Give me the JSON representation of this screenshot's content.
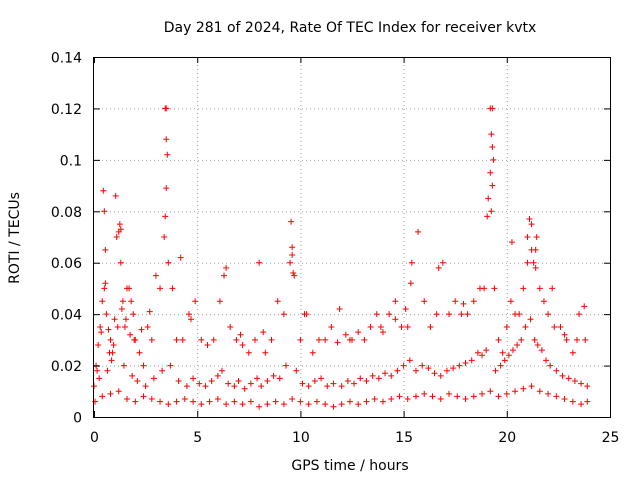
{
  "chart_data": {
    "type": "scatter",
    "title": "Day 281 of 2024, Rate Of TEC Index for receiver kvtx",
    "xlabel": "GPS time / hours",
    "ylabel": "ROTI / TECUs",
    "xlim": [
      0,
      25
    ],
    "ylim": [
      0,
      0.14
    ],
    "x_ticks": [
      0,
      5,
      10,
      15,
      20,
      25
    ],
    "y_ticks": [
      0,
      0.02,
      0.04,
      0.06,
      0.08,
      0.1,
      0.12,
      0.14
    ],
    "x_tick_labels": [
      "0",
      "5",
      "10",
      "15",
      "20",
      "25"
    ],
    "y_tick_labels": [
      "0",
      "0.02",
      "0.04",
      "0.06",
      "0.08",
      "0.1",
      "0.12",
      "0.14"
    ],
    "grid": true,
    "marker": "+",
    "marker_color": "#ff0000",
    "series": [
      {
        "x": [
          0.0,
          0.1,
          0.2,
          0.3,
          0.4,
          0.5,
          0.6,
          0.7,
          0.8,
          0.9,
          1.0,
          1.1,
          1.2,
          1.3,
          1.4,
          1.5,
          1.6,
          1.7,
          1.8,
          1.9,
          2.0,
          2.2,
          2.4,
          2.6,
          2.8,
          3.0,
          3.2,
          3.4,
          3.5,
          3.6,
          3.8,
          4.0,
          4.3,
          4.6,
          4.9,
          5.2,
          5.5,
          5.8,
          6.1,
          6.3,
          6.6,
          6.9,
          7.2,
          7.5,
          7.8,
          8.0,
          8.3,
          8.6,
          8.9,
          9.2,
          9.5,
          9.6,
          9.7,
          10.0,
          10.3,
          10.6,
          10.9,
          11.2,
          11.5,
          11.9,
          12.2,
          12.5,
          12.8,
          13.1,
          13.4,
          13.7,
          14.0,
          14.3,
          14.6,
          14.9,
          15.2,
          15.4,
          15.7,
          16.0,
          16.3,
          16.6,
          16.9,
          17.2,
          17.5,
          17.8,
          18.1,
          18.4,
          18.7,
          18.9,
          19.1,
          19.2,
          19.3,
          19.4,
          19.6,
          19.8,
          20.0,
          20.2,
          20.4,
          20.6,
          20.8,
          21.0,
          21.2,
          21.4,
          21.6,
          21.8,
          22.0,
          22.3,
          22.6,
          22.9,
          23.2,
          23.5,
          23.8,
          0.15,
          0.35,
          0.55,
          0.75,
          0.95,
          1.15,
          1.35,
          1.55,
          1.75,
          1.95,
          0.45,
          0.5,
          0.55,
          1.05,
          1.25,
          1.3,
          3.45,
          3.5,
          3.55,
          3.5,
          3.45,
          9.55,
          9.6,
          9.65,
          19.2,
          19.25,
          19.3,
          19.35,
          19.3,
          19.25,
          21.0,
          21.1,
          21.2,
          21.3,
          21.4,
          0.25,
          0.65,
          0.85,
          1.45,
          1.85,
          2.1,
          2.5,
          2.9,
          3.3,
          3.7,
          4.1,
          4.5,
          4.8,
          5.1,
          5.4,
          5.7,
          6.0,
          6.2,
          6.5,
          6.8,
          7.0,
          7.3,
          7.6,
          7.9,
          8.1,
          8.4,
          8.7,
          9.0,
          9.3,
          9.8,
          10.1,
          10.4,
          10.7,
          11.0,
          11.3,
          11.6,
          12.0,
          12.3,
          12.6,
          12.9,
          13.2,
          13.5,
          13.8,
          14.1,
          14.4,
          14.7,
          15.0,
          15.3,
          15.6,
          15.9,
          16.2,
          16.5,
          16.8,
          17.1,
          17.4,
          17.7,
          18.0,
          18.3,
          18.6,
          18.8,
          19.0,
          19.45,
          19.7,
          19.9,
          20.1,
          20.3,
          20.5,
          20.7,
          20.9,
          21.15,
          21.35,
          21.5,
          21.7,
          21.9,
          22.1,
          22.4,
          22.7,
          23.0,
          23.3,
          23.6,
          23.9,
          0.05,
          0.4,
          0.8,
          1.2,
          1.6,
          2.0,
          2.4,
          2.8,
          3.2,
          3.6,
          4.0,
          4.4,
          4.8,
          5.2,
          5.6,
          6.0,
          6.4,
          6.8,
          7.2,
          7.6,
          8.0,
          8.4,
          8.8,
          9.2,
          9.6,
          10.0,
          10.4,
          10.8,
          11.2,
          11.6,
          12.0,
          12.4,
          12.8,
          13.2,
          13.6,
          14.0,
          14.4,
          14.8,
          15.2,
          15.6,
          16.0,
          16.4,
          16.8,
          17.2,
          17.6,
          18.0,
          18.4,
          18.8,
          19.2,
          19.6,
          20.0,
          20.4,
          20.8,
          21.2,
          21.6,
          22.0,
          22.4,
          22.8,
          23.2,
          23.6,
          23.9,
          2.3,
          2.7,
          4.2,
          4.7,
          6.4,
          7.1,
          8.2,
          10.2,
          11.8,
          12.4,
          13.9,
          14.6,
          15.1,
          15.35,
          16.7,
          17.9,
          19.05,
          20.25,
          21.45,
          22.2,
          22.8,
          23.4,
          23.75
        ],
        "y": [
          0.012,
          0.02,
          0.028,
          0.035,
          0.045,
          0.05,
          0.04,
          0.034,
          0.03,
          0.025,
          0.038,
          0.07,
          0.072,
          0.06,
          0.045,
          0.035,
          0.05,
          0.05,
          0.045,
          0.04,
          0.03,
          0.025,
          0.02,
          0.035,
          0.03,
          0.055,
          0.05,
          0.07,
          0.12,
          0.06,
          0.05,
          0.03,
          0.03,
          0.04,
          0.045,
          0.03,
          0.028,
          0.03,
          0.045,
          0.055,
          0.035,
          0.03,
          0.028,
          0.025,
          0.03,
          0.06,
          0.025,
          0.03,
          0.045,
          0.04,
          0.06,
          0.066,
          0.055,
          0.03,
          0.04,
          0.025,
          0.03,
          0.03,
          0.035,
          0.042,
          0.032,
          0.03,
          0.033,
          0.03,
          0.035,
          0.04,
          0.033,
          0.04,
          0.045,
          0.035,
          0.035,
          0.06,
          0.072,
          0.045,
          0.035,
          0.04,
          0.06,
          0.04,
          0.045,
          0.04,
          0.04,
          0.045,
          0.05,
          0.05,
          0.085,
          0.095,
          0.12,
          0.05,
          0.03,
          0.025,
          0.035,
          0.045,
          0.04,
          0.04,
          0.05,
          0.06,
          0.075,
          0.065,
          0.05,
          0.045,
          0.04,
          0.035,
          0.035,
          0.03,
          0.025,
          0.04,
          0.03,
          0.018,
          0.033,
          0.052,
          0.025,
          0.028,
          0.035,
          0.042,
          0.038,
          0.032,
          0.03,
          0.088,
          0.08,
          0.065,
          0.086,
          0.075,
          0.073,
          0.12,
          0.108,
          0.102,
          0.089,
          0.078,
          0.076,
          0.063,
          0.056,
          0.12,
          0.11,
          0.105,
          0.1,
          0.09,
          0.08,
          0.07,
          0.077,
          0.065,
          0.06,
          0.058,
          0.015,
          0.018,
          0.022,
          0.02,
          0.016,
          0.014,
          0.012,
          0.015,
          0.018,
          0.02,
          0.014,
          0.012,
          0.015,
          0.013,
          0.012,
          0.014,
          0.016,
          0.018,
          0.013,
          0.012,
          0.014,
          0.011,
          0.013,
          0.015,
          0.012,
          0.014,
          0.016,
          0.015,
          0.02,
          0.018,
          0.013,
          0.012,
          0.014,
          0.015,
          0.012,
          0.013,
          0.012,
          0.014,
          0.013,
          0.015,
          0.014,
          0.016,
          0.015,
          0.017,
          0.016,
          0.018,
          0.02,
          0.022,
          0.018,
          0.02,
          0.019,
          0.017,
          0.016,
          0.018,
          0.019,
          0.02,
          0.021,
          0.022,
          0.025,
          0.024,
          0.026,
          0.018,
          0.02,
          0.022,
          0.024,
          0.026,
          0.028,
          0.03,
          0.035,
          0.038,
          0.03,
          0.028,
          0.026,
          0.022,
          0.02,
          0.018,
          0.016,
          0.015,
          0.014,
          0.013,
          0.012,
          0.006,
          0.008,
          0.009,
          0.01,
          0.007,
          0.006,
          0.008,
          0.007,
          0.006,
          0.005,
          0.006,
          0.007,
          0.006,
          0.005,
          0.006,
          0.007,
          0.005,
          0.006,
          0.005,
          0.006,
          0.004,
          0.005,
          0.006,
          0.005,
          0.007,
          0.006,
          0.005,
          0.006,
          0.005,
          0.004,
          0.005,
          0.006,
          0.005,
          0.006,
          0.007,
          0.006,
          0.007,
          0.008,
          0.007,
          0.008,
          0.009,
          0.008,
          0.007,
          0.009,
          0.008,
          0.007,
          0.008,
          0.009,
          0.01,
          0.008,
          0.009,
          0.01,
          0.011,
          0.012,
          0.01,
          0.009,
          0.008,
          0.007,
          0.006,
          0.005,
          0.006,
          0.034,
          0.041,
          0.062,
          0.038,
          0.058,
          0.032,
          0.033,
          0.04,
          0.029,
          0.03,
          0.035,
          0.038,
          0.042,
          0.052,
          0.058,
          0.044,
          0.078,
          0.068,
          0.07,
          0.05,
          0.032,
          0.03,
          0.043
        ]
      }
    ]
  }
}
